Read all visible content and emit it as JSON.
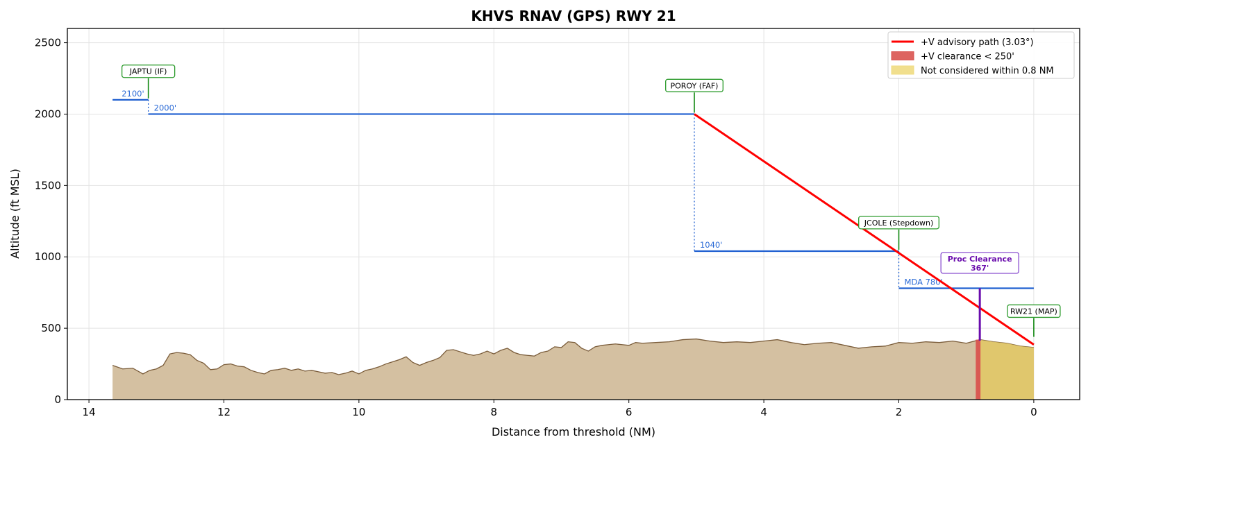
{
  "chart_data": {
    "type": "line",
    "title": "KHVS  RNAV (GPS) RWY 21",
    "xlabel": "Distance from threshold (NM)",
    "ylabel": "Altitude (ft MSL)",
    "xlim": [
      14.32,
      -0.68
    ],
    "ylim": [
      0,
      2600
    ],
    "xticks": [
      14,
      12,
      10,
      8,
      6,
      4,
      2,
      0
    ],
    "yticks": [
      0,
      500,
      1000,
      1500,
      2000,
      2500
    ],
    "grid": true,
    "legend_position": "top-right",
    "legend": [
      {
        "label": "+V advisory path (3.03°)",
        "kind": "line",
        "color": "#ff0000"
      },
      {
        "label": "+V clearance < 250'",
        "kind": "patch",
        "color": "#d9534f"
      },
      {
        "label": "Not considered within 0.8 NM",
        "kind": "patch",
        "color": "#f0dc82"
      }
    ],
    "advisory_path": {
      "from": [
        5.03,
        2000
      ],
      "to": [
        0,
        385
      ],
      "color": "#ff0000"
    },
    "altitude_segments": [
      {
        "from": 13.65,
        "to": 13.12,
        "alt": 2100,
        "label": "2100'",
        "label_side": "left"
      },
      {
        "from": 13.12,
        "to": 5.03,
        "alt": 2000,
        "label": "2000'",
        "label_side": "right"
      },
      {
        "from": 5.03,
        "to": 2.0,
        "alt": 1040,
        "label": "1040'",
        "label_side": "right"
      },
      {
        "from": 2.0,
        "to": 0,
        "alt": 780,
        "label": "MDA 780'",
        "label_side": "right"
      }
    ],
    "step_connectors": [
      {
        "x": 13.12,
        "from": 2100,
        "to": 2000
      },
      {
        "x": 5.03,
        "from": 2000,
        "to": 1040
      },
      {
        "x": 2.0,
        "from": 1040,
        "to": 780
      }
    ],
    "waypoints": [
      {
        "name": "JAPTU (IF)",
        "dist": 13.12,
        "alt": 2100,
        "label_alt": 2300
      },
      {
        "name": "POROY (FAF)",
        "dist": 5.03,
        "alt": 2000,
        "label_alt": 2200
      },
      {
        "name": "JCOLE (Stepdown)",
        "dist": 2.0,
        "alt": 1040,
        "label_alt": 1240
      },
      {
        "name": "RW21 (MAP)",
        "dist": 0,
        "alt": 430,
        "label_alt": 620
      }
    ],
    "proc_clearance": {
      "title": "Proc Clearance",
      "value": "367'",
      "dist": 0.8,
      "from": 413,
      "to": 780,
      "color": "#6a0dad"
    },
    "clearance_zone": {
      "from": 0.86,
      "to": 0.79,
      "top": 420,
      "color": "#d9534f"
    },
    "not_considered_zone": {
      "from": 0.8,
      "to": 0,
      "color": "#e2c864"
    },
    "terrain": {
      "dist": [
        13.65,
        13.5,
        13.35,
        13.2,
        13.1,
        13.0,
        12.9,
        12.8,
        12.7,
        12.6,
        12.5,
        12.4,
        12.3,
        12.2,
        12.1,
        12.0,
        11.9,
        11.8,
        11.7,
        11.6,
        11.5,
        11.4,
        11.3,
        11.2,
        11.1,
        11.0,
        10.9,
        10.8,
        10.7,
        10.6,
        10.5,
        10.4,
        10.3,
        10.2,
        10.1,
        10.0,
        9.9,
        9.8,
        9.7,
        9.6,
        9.5,
        9.4,
        9.3,
        9.2,
        9.1,
        9.0,
        8.9,
        8.8,
        8.7,
        8.6,
        8.5,
        8.4,
        8.3,
        8.2,
        8.1,
        8.0,
        7.9,
        7.8,
        7.7,
        7.6,
        7.5,
        7.4,
        7.3,
        7.2,
        7.1,
        7.0,
        6.9,
        6.8,
        6.7,
        6.6,
        6.5,
        6.4,
        6.3,
        6.2,
        6.1,
        6.0,
        5.9,
        5.8,
        5.6,
        5.4,
        5.2,
        5.0,
        4.8,
        4.6,
        4.4,
        4.2,
        4.0,
        3.8,
        3.6,
        3.4,
        3.2,
        3.0,
        2.8,
        2.6,
        2.4,
        2.2,
        2.0,
        1.8,
        1.6,
        1.4,
        1.2,
        1.0,
        0.8,
        0.6,
        0.4,
        0.2,
        0.0
      ],
      "alt": [
        240,
        215,
        220,
        180,
        205,
        215,
        240,
        320,
        330,
        325,
        315,
        275,
        255,
        210,
        215,
        245,
        250,
        235,
        230,
        205,
        190,
        180,
        205,
        210,
        220,
        205,
        215,
        200,
        205,
        195,
        185,
        190,
        175,
        185,
        200,
        180,
        205,
        215,
        230,
        250,
        265,
        280,
        300,
        260,
        240,
        260,
        275,
        295,
        345,
        350,
        335,
        320,
        310,
        320,
        340,
        320,
        345,
        360,
        330,
        315,
        310,
        305,
        330,
        340,
        370,
        365,
        405,
        400,
        360,
        340,
        370,
        380,
        385,
        390,
        385,
        380,
        400,
        395,
        400,
        405,
        420,
        425,
        410,
        400,
        405,
        400,
        410,
        420,
        400,
        385,
        395,
        400,
        380,
        360,
        370,
        375,
        400,
        395,
        405,
        400,
        410,
        395,
        420,
        405,
        395,
        375,
        365
      ],
      "fill": "#d4c0a1",
      "stroke": "#7a5c3a"
    }
  }
}
